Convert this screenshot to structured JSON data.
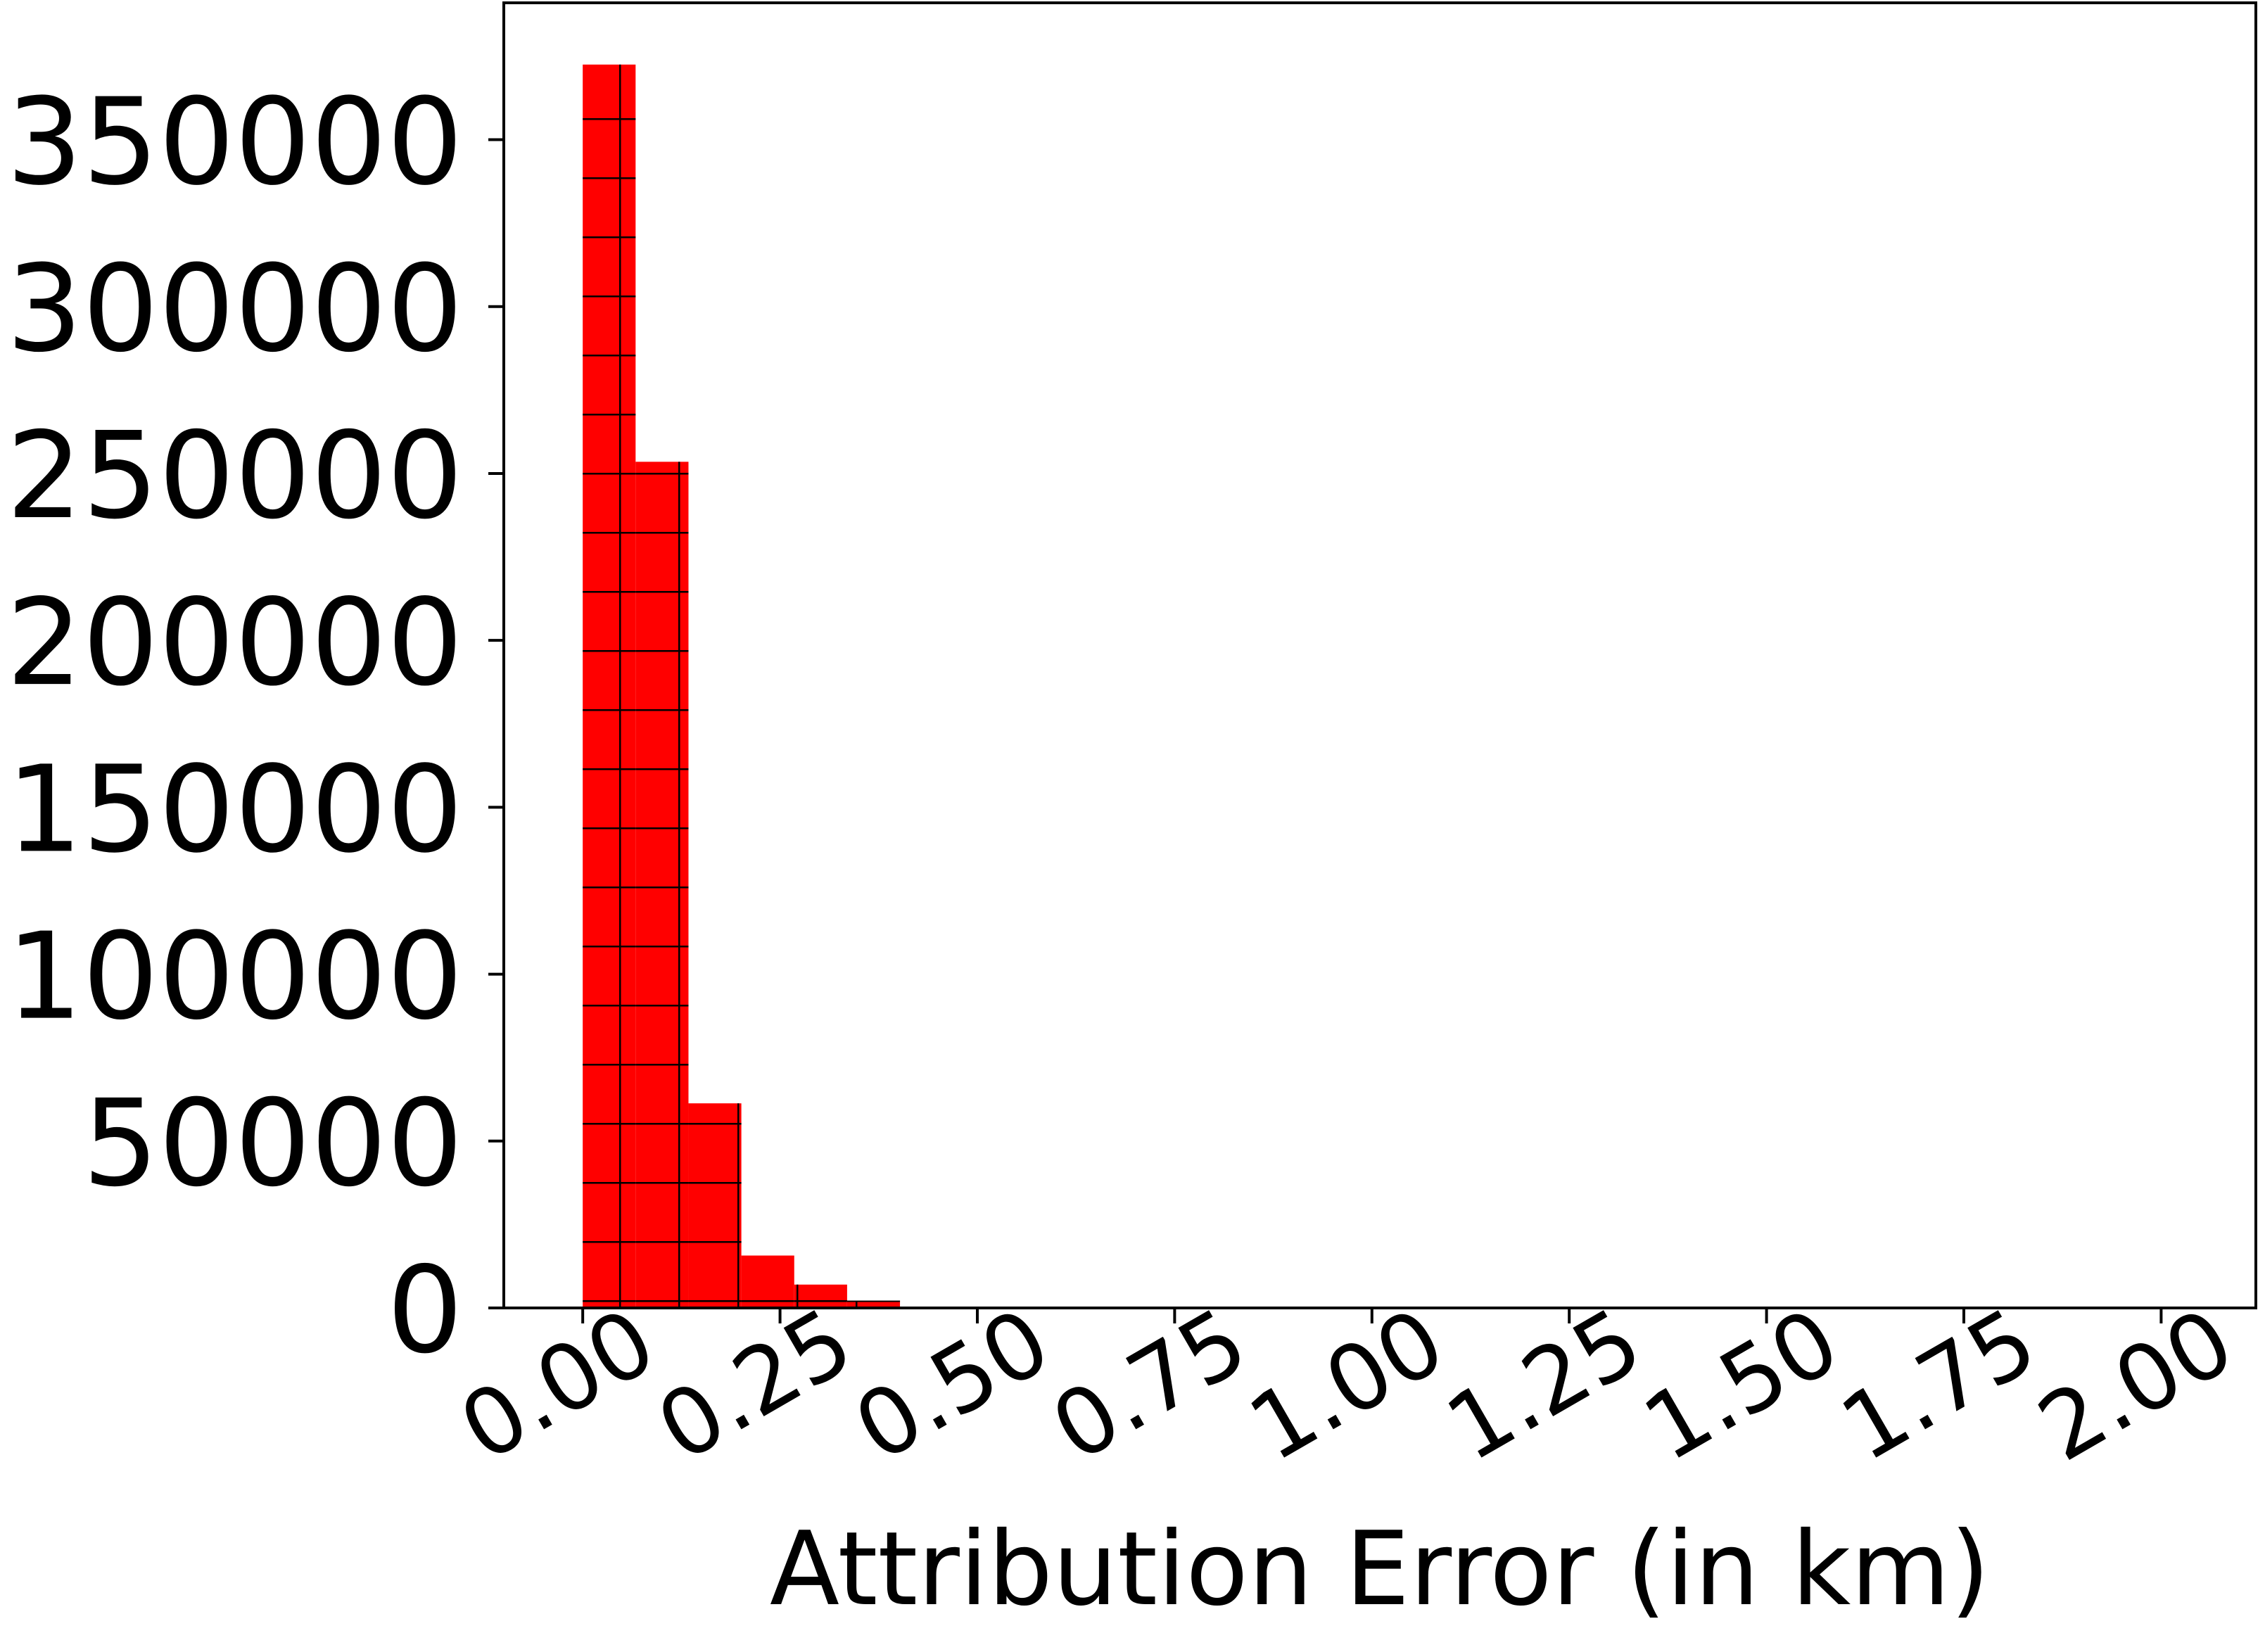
{
  "chart_data": {
    "type": "histogram",
    "xlabel": "Attribution Error (in km)",
    "bins": [
      0,
      0.067,
      0.134,
      0.201,
      0.268,
      0.335,
      0.402
    ],
    "values": [
      372500,
      253500,
      61300,
      15700,
      7000,
      2200
    ],
    "color": "#ff0000",
    "hatch": "+",
    "xlim": [
      -0.1,
      2.12
    ],
    "xticks": [
      {
        "value": 0,
        "label": "0.00"
      },
      {
        "value": 0.25,
        "label": "0.25"
      },
      {
        "value": 0.5,
        "label": "0.50"
      },
      {
        "value": 0.75,
        "label": "0.75"
      },
      {
        "value": 1,
        "label": "1.00"
      },
      {
        "value": 1.25,
        "label": "1.25"
      },
      {
        "value": 1.5,
        "label": "1.50"
      },
      {
        "value": 1.75,
        "label": "1.75"
      },
      {
        "value": 2,
        "label": "2.00"
      }
    ],
    "ylim": [
      0,
      391000
    ],
    "yticks": [
      0,
      50000,
      100000,
      150000,
      200000,
      250000,
      300000,
      350000
    ]
  }
}
